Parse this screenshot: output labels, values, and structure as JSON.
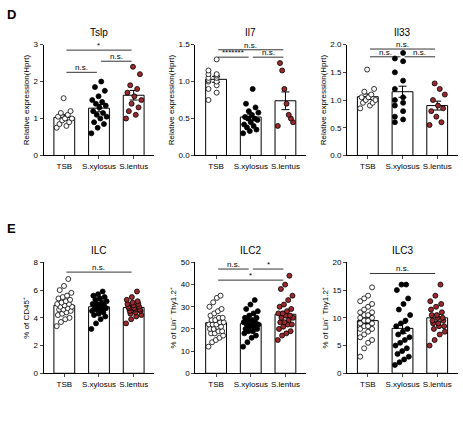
{
  "chart_data": [
    {
      "type": "bar",
      "panel": "D",
      "title": "Tslp",
      "y_label": "Relative expression(Hprt)",
      "categories": [
        "TSB",
        "S.xylosus",
        "S.lentus"
      ],
      "values": [
        1.03,
        1.28,
        1.63
      ],
      "errors": [
        0.07,
        0.1,
        0.13
      ],
      "points": [
        [
          0.75,
          0.8,
          0.85,
          0.9,
          0.95,
          1.0,
          1.0,
          1.05,
          1.1,
          1.15,
          1.2,
          1.55
        ],
        [
          0.6,
          0.75,
          0.85,
          0.9,
          1.0,
          1.05,
          1.1,
          1.15,
          1.2,
          1.3,
          1.35,
          1.4,
          1.45,
          1.5,
          1.6,
          1.75,
          1.85,
          2.0
        ],
        [
          1.0,
          1.1,
          1.2,
          1.3,
          1.4,
          1.5,
          1.6,
          1.7,
          1.8,
          1.9,
          2.2,
          2.4
        ]
      ],
      "color": "#ffffff",
      "colors": [
        "#ffffff",
        "#000000",
        "#9b2a2e"
      ],
      "significance": [
        {
          "from": 0,
          "to": 1,
          "y": 2.25,
          "label": "n.s."
        },
        {
          "from": 1,
          "to": 2,
          "y": 2.55,
          "label": "n.s."
        },
        {
          "from": 0,
          "to": 2,
          "y": 2.85,
          "label": "*"
        }
      ],
      "ylim": [
        0,
        3
      ],
      "yticks": [
        0,
        1,
        2,
        3
      ],
      "grid": false
    },
    {
      "type": "bar",
      "title": "Il7",
      "y_label": "Relative expression(Hprt)",
      "categories": [
        "TSB",
        "S.xylosus",
        "S.lentus"
      ],
      "values": [
        1.03,
        0.52,
        0.74
      ],
      "errors": [
        0.04,
        0.04,
        0.12
      ],
      "points": [
        [
          0.75,
          0.85,
          0.9,
          0.95,
          1.0,
          1.0,
          1.02,
          1.05,
          1.05,
          1.08,
          1.1,
          1.1,
          1.15,
          1.3
        ],
        [
          0.3,
          0.33,
          0.35,
          0.38,
          0.4,
          0.42,
          0.45,
          0.48,
          0.5,
          0.5,
          0.52,
          0.55,
          0.58,
          0.6,
          0.65,
          0.7,
          0.9
        ],
        [
          0.4,
          0.45,
          0.5,
          0.55,
          0.7,
          0.9,
          1.15,
          1.25
        ]
      ],
      "color": "#ffffff",
      "colors": [
        "#ffffff",
        "#000000",
        "#9b2a2e"
      ],
      "significance": [
        {
          "from": 0,
          "to": 1,
          "y": 1.33,
          "label": "*******"
        },
        {
          "from": 1,
          "to": 2,
          "y": 1.33,
          "label": "n.s."
        },
        {
          "from": 0,
          "to": 2,
          "y": 1.43,
          "label": "n.s."
        }
      ],
      "ylim": [
        0,
        1.5
      ],
      "yticks": [
        {
          "value": 0,
          "label": "0.0"
        },
        {
          "value": 0.5,
          "label": "0.5"
        },
        {
          "value": 1,
          "label": "1.0"
        },
        {
          "value": 1.5,
          "label": "1.5"
        }
      ],
      "grid": false
    },
    {
      "type": "bar",
      "title": "Il33",
      "y_label": "Relative expression(Hprt)",
      "categories": [
        "TSB",
        "S.xylosus",
        "S.lentus"
      ],
      "values": [
        1.06,
        1.15,
        0.9
      ],
      "errors": [
        0.05,
        0.1,
        0.08
      ],
      "points": [
        [
          0.85,
          0.9,
          0.95,
          0.95,
          1.0,
          1.0,
          1.05,
          1.05,
          1.1,
          1.15,
          1.2,
          1.55
        ],
        [
          0.6,
          0.65,
          0.7,
          0.8,
          0.9,
          0.95,
          1.0,
          1.05,
          1.2,
          1.35,
          1.5,
          1.7,
          1.75,
          1.85
        ],
        [
          0.55,
          0.6,
          0.7,
          0.8,
          0.85,
          0.9,
          1.0,
          1.1,
          1.2,
          1.3
        ]
      ],
      "color": "#ffffff",
      "colors": [
        "#ffffff",
        "#000000",
        "#9b2a2e"
      ],
      "significance": [
        {
          "from": 0,
          "to": 1,
          "y": 1.78,
          "label": "n.s."
        },
        {
          "from": 1,
          "to": 2,
          "y": 1.78,
          "label": "n.s."
        },
        {
          "from": 0,
          "to": 2,
          "y": 1.92,
          "label": "n.s."
        }
      ],
      "ylim": [
        0,
        2
      ],
      "yticks": [
        {
          "value": 0,
          "label": "0.0"
        },
        {
          "value": 0.5,
          "label": "0.5"
        },
        {
          "value": 1,
          "label": "1.0"
        },
        {
          "value": 1.5,
          "label": "1.5"
        },
        {
          "value": 2,
          "label": "2.0"
        }
      ],
      "grid": false
    },
    {
      "type": "bar",
      "panel": "E",
      "title": "ILC",
      "y_label": "% of CD45⁺",
      "categories": [
        "TSB",
        "S.xylosus",
        "S.lentus"
      ],
      "values": [
        4.9,
        4.8,
        4.75
      ],
      "errors": [
        0.15,
        0.15,
        0.15
      ],
      "points": [
        [
          3.4,
          3.7,
          3.9,
          4.0,
          4.2,
          4.3,
          4.4,
          4.5,
          4.6,
          4.6,
          4.7,
          4.8,
          4.8,
          4.9,
          5.0,
          5.0,
          5.1,
          5.2,
          5.3,
          5.4,
          5.5,
          5.6,
          5.8,
          6.0,
          6.3,
          6.8
        ],
        [
          3.2,
          3.6,
          3.9,
          4.1,
          4.2,
          4.3,
          4.4,
          4.5,
          4.6,
          4.6,
          4.7,
          4.7,
          4.8,
          4.9,
          5.0,
          5.0,
          5.1,
          5.2,
          5.3,
          5.4,
          5.5,
          5.6,
          5.7,
          5.9
        ],
        [
          3.6,
          3.9,
          4.1,
          4.2,
          4.3,
          4.4,
          4.5,
          4.5,
          4.6,
          4.6,
          4.7,
          4.7,
          4.8,
          4.8,
          4.9,
          5.0,
          5.0,
          5.1,
          5.2,
          5.3,
          5.5,
          5.9
        ]
      ],
      "color": "#ffffff",
      "colors": [
        "#ffffff",
        "#000000",
        "#9b2a2e"
      ],
      "significance": [
        {
          "from": 0,
          "to": 2,
          "y": 7.3,
          "label": "n.s."
        }
      ],
      "ylim": [
        0,
        8
      ],
      "yticks": [
        0,
        2,
        4,
        6,
        8
      ],
      "grid": false
    },
    {
      "type": "bar",
      "title": "ILC2",
      "y_label": "% of Lin⁻ Thy1.2⁺",
      "categories": [
        "TSB",
        "S.xylosus",
        "S.lentus"
      ],
      "values": [
        22.8,
        22.4,
        26.6
      ],
      "errors": [
        1.0,
        0.9,
        1.3
      ],
      "points": [
        [
          12,
          14,
          15,
          16,
          17,
          18,
          18,
          19,
          19,
          20,
          20,
          21,
          21,
          22,
          22,
          22,
          23,
          23,
          24,
          24,
          25,
          25,
          26,
          27,
          28,
          29,
          30,
          32,
          34,
          35
        ],
        [
          12,
          14,
          16,
          17,
          18,
          19,
          19,
          20,
          20,
          21,
          21,
          22,
          22,
          22,
          23,
          23,
          24,
          24,
          25,
          25,
          26,
          27,
          28,
          29,
          31,
          33
        ],
        [
          15,
          17,
          18,
          19,
          20,
          21,
          22,
          22,
          23,
          23,
          24,
          25,
          25,
          26,
          26,
          27,
          27,
          28,
          29,
          30,
          31,
          33,
          35,
          38,
          40,
          44
        ]
      ],
      "color": "#ffffff",
      "colors": [
        "#ffffff",
        "#000000",
        "#9b2a2e"
      ],
      "significance": [
        {
          "from": 0,
          "to": 1,
          "y": 47,
          "label": "n.s."
        },
        {
          "from": 1,
          "to": 2,
          "y": 47,
          "label": "*"
        },
        {
          "from": 0,
          "to": 2,
          "y": 42,
          "label": "*"
        }
      ],
      "ylim": [
        0,
        50
      ],
      "yticks": [
        0,
        10,
        20,
        30,
        40,
        50
      ],
      "grid": false
    },
    {
      "type": "bar",
      "title": "ILC3",
      "y_label": "% of Lin⁻ Thy1.2⁺",
      "categories": [
        "TSB",
        "S.xylosus",
        "S.lentus"
      ],
      "values": [
        9.5,
        8.1,
        10.0
      ],
      "errors": [
        0.5,
        0.9,
        0.6
      ],
      "points": [
        [
          3,
          4.5,
          5.5,
          6,
          6.5,
          7,
          7.5,
          8,
          8,
          8.5,
          8.5,
          9,
          9,
          9.5,
          9.5,
          10,
          10,
          10.5,
          10.5,
          11,
          11,
          11.5,
          12,
          12.5,
          13,
          13.5,
          14,
          15.5
        ],
        [
          1.5,
          2,
          2.5,
          3,
          3.5,
          4,
          4.5,
          5,
          5.5,
          6,
          6.5,
          7,
          7.5,
          8,
          8.5,
          9,
          9.5,
          10.5,
          11.5,
          12.5,
          13.5,
          15,
          16,
          16
        ],
        [
          5,
          6,
          7,
          7.5,
          8,
          8.5,
          8.5,
          9,
          9,
          9.5,
          9.5,
          10,
          10,
          10.5,
          10.5,
          11,
          11.5,
          12,
          12.5,
          13,
          14,
          16
        ]
      ],
      "color": "#ffffff",
      "colors": [
        "#ffffff",
        "#000000",
        "#9b2a2e"
      ],
      "significance": [
        {
          "from": 0,
          "to": 2,
          "y": 18,
          "label": "n.s."
        }
      ],
      "ylim": [
        0,
        20
      ],
      "yticks": [
        0,
        5,
        10,
        15,
        20
      ],
      "grid": false
    }
  ]
}
